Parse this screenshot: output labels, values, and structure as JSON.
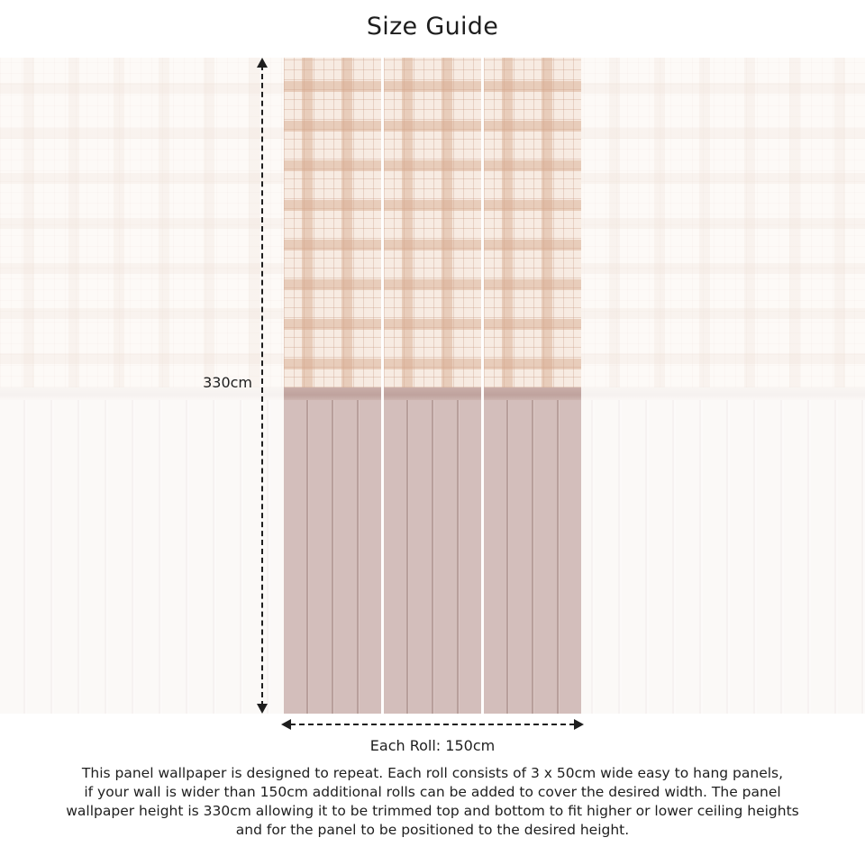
{
  "title": "Size Guide",
  "dimensions": {
    "height_label": "330cm",
    "width_label": "Each Roll: 150cm"
  },
  "colors": {
    "roll_plaid": "#f7ebe2",
    "roll_panel": "#d2bdb9",
    "wall_plaid": "#faf3ee",
    "wall_panel": "#f6f1ee",
    "text": "#1e1e1e"
  },
  "description_lines": [
    "This panel wallpaper is designed to repeat. Each roll consists of 3 x 50cm wide easy to hang panels,",
    "if your wall is wider than 150cm additional rolls can be added to cover the desired width. The panel",
    "wallpaper height is 330cm allowing it to be trimmed top and bottom to fit higher or lower ceiling heights",
    "and for the panel to be positioned to the desired height."
  ]
}
